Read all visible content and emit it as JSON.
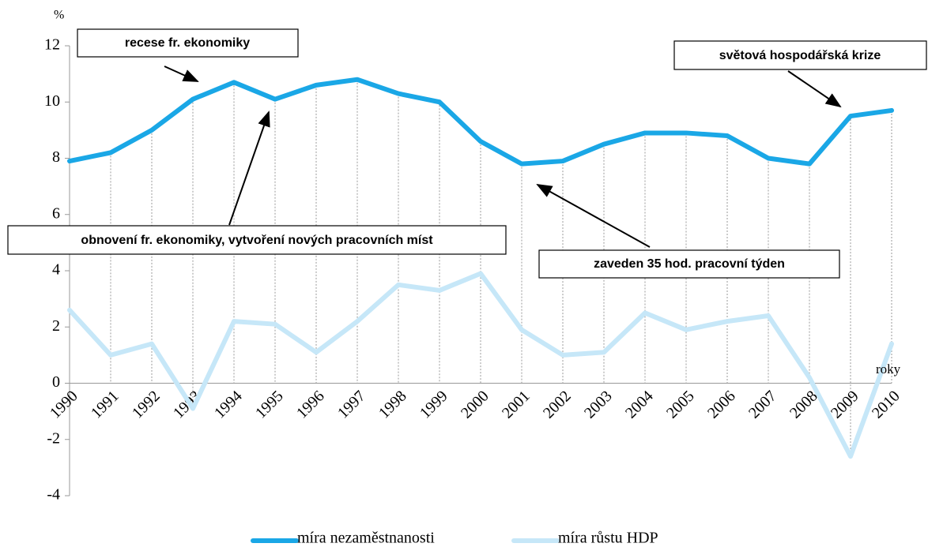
{
  "chart_data": {
    "type": "line",
    "y_unit": "%",
    "x_axis_label": "roky",
    "categories": [
      "1990",
      "1991",
      "1992",
      "1993",
      "1994",
      "1995",
      "1996",
      "1997",
      "1998",
      "1999",
      "2000",
      "2001",
      "2002",
      "2003",
      "2004",
      "2005",
      "2006",
      "2007",
      "2008",
      "2009",
      "2010"
    ],
    "series": [
      {
        "name": "míra nezaměstnanosti",
        "color": "#1aa7e6",
        "values": [
          7.9,
          8.2,
          9.0,
          10.1,
          10.7,
          10.1,
          10.6,
          10.8,
          10.3,
          10.0,
          8.6,
          7.8,
          7.9,
          8.5,
          8.9,
          8.9,
          8.8,
          8.0,
          7.8,
          9.5,
          9.7
        ]
      },
      {
        "name": "míra růstu HDP",
        "color": "#c6e7f8",
        "values": [
          2.6,
          1.0,
          1.4,
          -0.9,
          2.2,
          2.1,
          1.1,
          2.2,
          3.5,
          3.3,
          3.9,
          1.9,
          1.0,
          1.1,
          2.5,
          1.9,
          2.2,
          2.4,
          0.2,
          -2.6,
          1.4
        ]
      }
    ],
    "ylim": [
      -4,
      12
    ],
    "yticks": [
      -4,
      -2,
      0,
      2,
      4,
      6,
      8,
      10,
      12
    ],
    "annotations": [
      "recese fr. ekonomiky",
      "obnovení fr. ekonomiky, vytvoření nových pracovních míst",
      "zaveden 35 hod. pracovní týden",
      "světová hospodářská krize"
    ]
  }
}
